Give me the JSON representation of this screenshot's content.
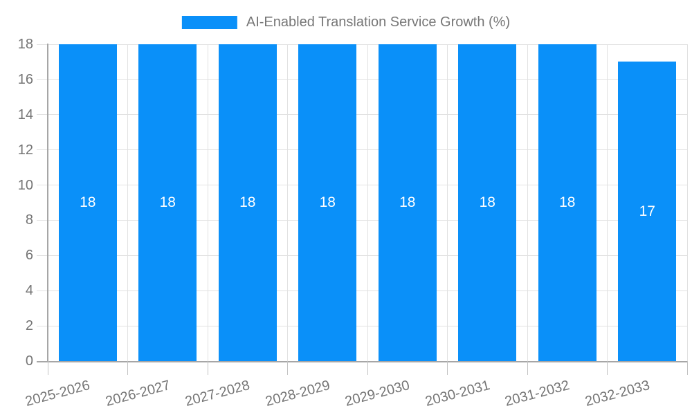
{
  "legend": {
    "label": "AI-Enabled Translation Service Growth (%)"
  },
  "chart_data": {
    "type": "bar",
    "title": "AI-Enabled Translation Service Growth (%)",
    "categories": [
      "2025-2026",
      "2026-2027",
      "2027-2028",
      "2028-2029",
      "2029-2030",
      "2030-2031",
      "2031-2032",
      "2032-2033"
    ],
    "values": [
      18,
      18,
      18,
      18,
      18,
      18,
      18,
      17
    ],
    "data_labels": [
      "18",
      "18",
      "18",
      "18",
      "18",
      "18",
      "18",
      "17"
    ],
    "xlabel": "",
    "ylabel": "",
    "ylim": [
      0,
      18
    ],
    "yticks": [
      0,
      2,
      4,
      6,
      8,
      10,
      12,
      14,
      16,
      18
    ],
    "grid": "horizontal value gridlines + vertical category-boundary gridlines",
    "legend_position": "top-center",
    "value_label_position": "inside-center"
  },
  "colors": {
    "bar": "#0A90F9",
    "grid_line": "#E1E1E1",
    "axis_line": "#A6A6A6",
    "tick_line": "#C2C2C2",
    "axis_label": "#757575",
    "legend_text": "#777777",
    "value_label": "#FFFFFF",
    "background": "#FFFFFF"
  }
}
